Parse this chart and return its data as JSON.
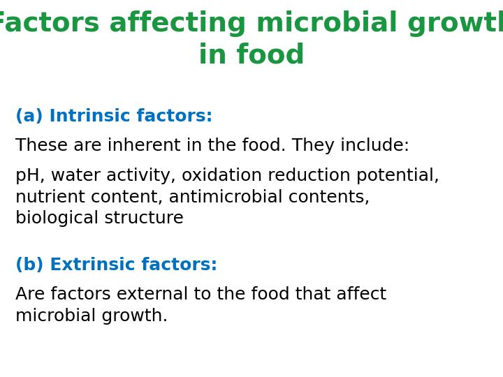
{
  "title_line1": "Factors affecting microbial growth",
  "title_line2": "in food",
  "title_color": "#1a9641",
  "title_fontsize": 28,
  "title_fontweight": "bold",
  "subtitle_a_text": "(a) Intrinsic factors:",
  "subtitle_a_color": "#0070c0",
  "subtitle_fontsize": 18,
  "subtitle_fontweight": "bold",
  "body_line1": "These are inherent in the food. They include:",
  "body_line2": "pH, water activity, oxidation reduction potential,",
  "body_line3": "nutrient content, antimicrobial contents,",
  "body_line4": "biological structure",
  "subtitle_b_text": "(b) Extrinsic factors:",
  "subtitle_b_color": "#0070c0",
  "body_line5": "Are factors external to the food that affect",
  "body_line6": "microbial growth.",
  "body_color": "#000000",
  "body_fontsize": 18,
  "background_color": "#ffffff",
  "fig_width": 7.2,
  "fig_height": 5.4,
  "dpi": 100
}
